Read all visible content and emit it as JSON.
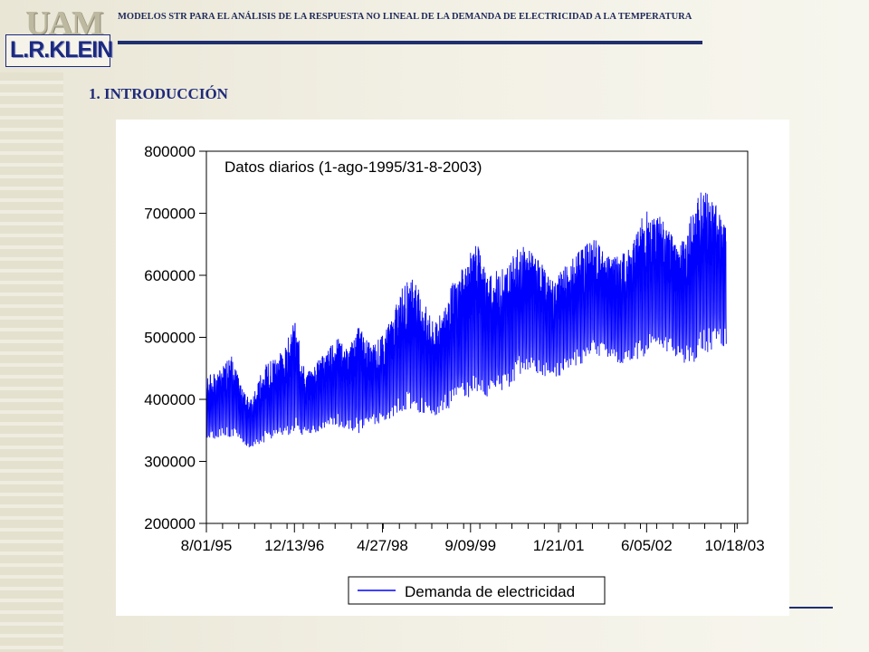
{
  "header": {
    "logo_top": "UAM",
    "logo_bottom": "L.R.KLEIN",
    "title": "MODELOS STR PARA EL ANÁLISIS DE LA RESPUESTA NO LINEAL DE LA DEMANDA DE ELECTRICIDAD A LA TEMPERATURA"
  },
  "section": {
    "title": "1. INTRODUCCIÓN"
  },
  "colors": {
    "series": "#0000ff",
    "header_text": "#1f2a5a",
    "accent_rule": "#1f2f6e"
  },
  "chart_data": {
    "type": "line",
    "title": "",
    "annotation": "Datos diarios (1-ago-1995/31-8-2003)",
    "xlabel": "",
    "ylabel": "",
    "ylim": [
      200000,
      800000
    ],
    "yticks": [
      200000,
      300000,
      400000,
      500000,
      600000,
      700000,
      800000
    ],
    "ytick_labels": [
      "200000",
      "300000",
      "400000",
      "500000",
      "600000",
      "700000",
      "800000"
    ],
    "xlim": [
      "1995-08-01",
      "2003-12-31"
    ],
    "xtick_labels": [
      "8/01/95",
      "12/13/96",
      "4/27/98",
      "9/09/99",
      "1/21/01",
      "6/05/02",
      "10/18/03"
    ],
    "grid": false,
    "legend": {
      "placement": "bottom-center",
      "entries": [
        "Demanda de electricidad"
      ]
    },
    "series": [
      {
        "name": "Demanda de electricidad",
        "frequency": "daily",
        "x": [
          "1995-08",
          "1995-10",
          "1995-12",
          "1996-02",
          "1996-04",
          "1996-06",
          "1996-08",
          "1996-10",
          "1996-12",
          "1997-02",
          "1997-04",
          "1997-06",
          "1997-08",
          "1997-10",
          "1997-12",
          "1998-02",
          "1998-04",
          "1998-06",
          "1998-08",
          "1998-10",
          "1998-12",
          "1999-02",
          "1999-04",
          "1999-06",
          "1999-08",
          "1999-10",
          "1999-12",
          "2000-02",
          "2000-04",
          "2000-06",
          "2000-08",
          "2000-10",
          "2000-12",
          "2001-02",
          "2001-04",
          "2001-06",
          "2001-08",
          "2001-10",
          "2001-12",
          "2002-02",
          "2002-04",
          "2002-06",
          "2002-08",
          "2002-10",
          "2002-12",
          "2003-02",
          "2003-04",
          "2003-06",
          "2003-08"
        ],
        "low": [
          330000,
          335000,
          340000,
          330000,
          320000,
          330000,
          335000,
          340000,
          345000,
          340000,
          345000,
          350000,
          355000,
          350000,
          345000,
          355000,
          360000,
          370000,
          380000,
          385000,
          375000,
          370000,
          380000,
          390000,
          400000,
          405000,
          400000,
          410000,
          420000,
          440000,
          445000,
          440000,
          430000,
          440000,
          450000,
          460000,
          470000,
          465000,
          455000,
          460000,
          465000,
          470000,
          475000,
          470000,
          460000,
          455000,
          470000,
          480000,
          485000
        ],
        "high": [
          440000,
          450000,
          480000,
          420000,
          400000,
          450000,
          470000,
          480000,
          530000,
          440000,
          460000,
          480000,
          500000,
          480000,
          520000,
          490000,
          500000,
          530000,
          580000,
          600000,
          560000,
          520000,
          560000,
          600000,
          620000,
          660000,
          600000,
          610000,
          620000,
          650000,
          640000,
          620000,
          590000,
          610000,
          630000,
          650000,
          660000,
          640000,
          630000,
          640000,
          680000,
          710000,
          700000,
          670000,
          650000,
          700000,
          750000,
          720000,
          700000
        ]
      }
    ]
  }
}
